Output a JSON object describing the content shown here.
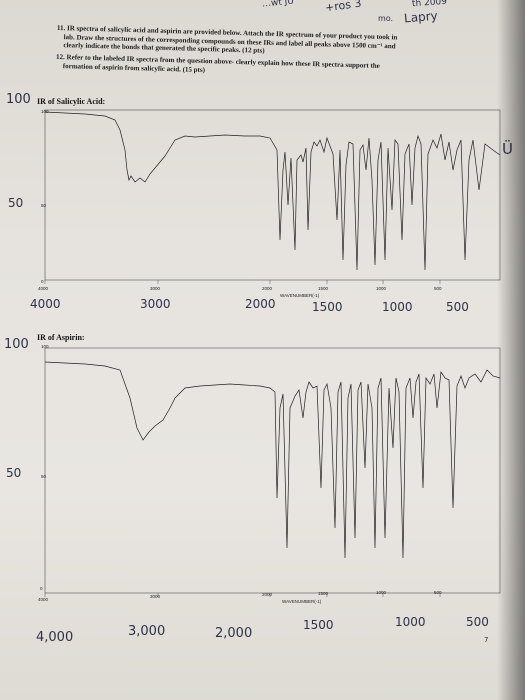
{
  "questions": {
    "q11_line1": "11. IR spectra of salicylic acid and aspirin are provided below. Attach the IR spectrum of your product you took in",
    "q11_line2": "lab. Draw the structures of the corresponding compounds on these IRs and label all peaks above 1500 cm⁻¹ and",
    "q11_line3": "clearly indicate the bonds that generated the specific peaks. (12 pts)",
    "q12_line1": "12. Refer to the labeled IR spectra from the question above- clearly explain how these IR spectra support the",
    "q12_line2": "formation of aspirin from salicylic acid. (15 pts)"
  },
  "handwriting": {
    "top_a": "…wt  JU",
    "top_b": "+ros 3",
    "top_c": "th 2009",
    "top_d": "mo.",
    "top_e": "Lapry",
    "s1_y100": "100",
    "s1_y50": "50",
    "s1_x4000": "4000",
    "s1_x3000": "3000",
    "s1_x2000": "2000",
    "s1_x1500": "1500",
    "s1_x1000": "1000",
    "s1_x500": "500",
    "s2_y100": "100",
    "s2_y50": "50",
    "s2_x4000": "4,000",
    "s2_x3000": "3,000",
    "s2_x2000": "2,000",
    "s2_x1500": "1500",
    "s2_x1000": "1000",
    "s2_x500": "500",
    "margin_right": "Ü",
    "page_mark": "7"
  },
  "spectra": [
    {
      "title": "IR of Salicylic Acid:",
      "x_ticks": [
        "4000",
        "3000",
        "2000",
        "1500",
        "1000",
        "500"
      ],
      "y_ticks": [
        "100",
        "50",
        "0"
      ],
      "x_axis_label": "WAVENUMBER(-1)"
    },
    {
      "title": "IR of Aspirin:",
      "x_ticks": [
        "4000",
        "3000",
        "2000",
        "1500",
        "1000",
        "500"
      ],
      "y_ticks": [
        "100",
        "50",
        "0"
      ],
      "x_axis_label": "WAVENUMBER(-1)"
    }
  ],
  "colors": {
    "ink": "#2d3346",
    "print": "#1c1c1c",
    "paper": "#e6e3de"
  }
}
